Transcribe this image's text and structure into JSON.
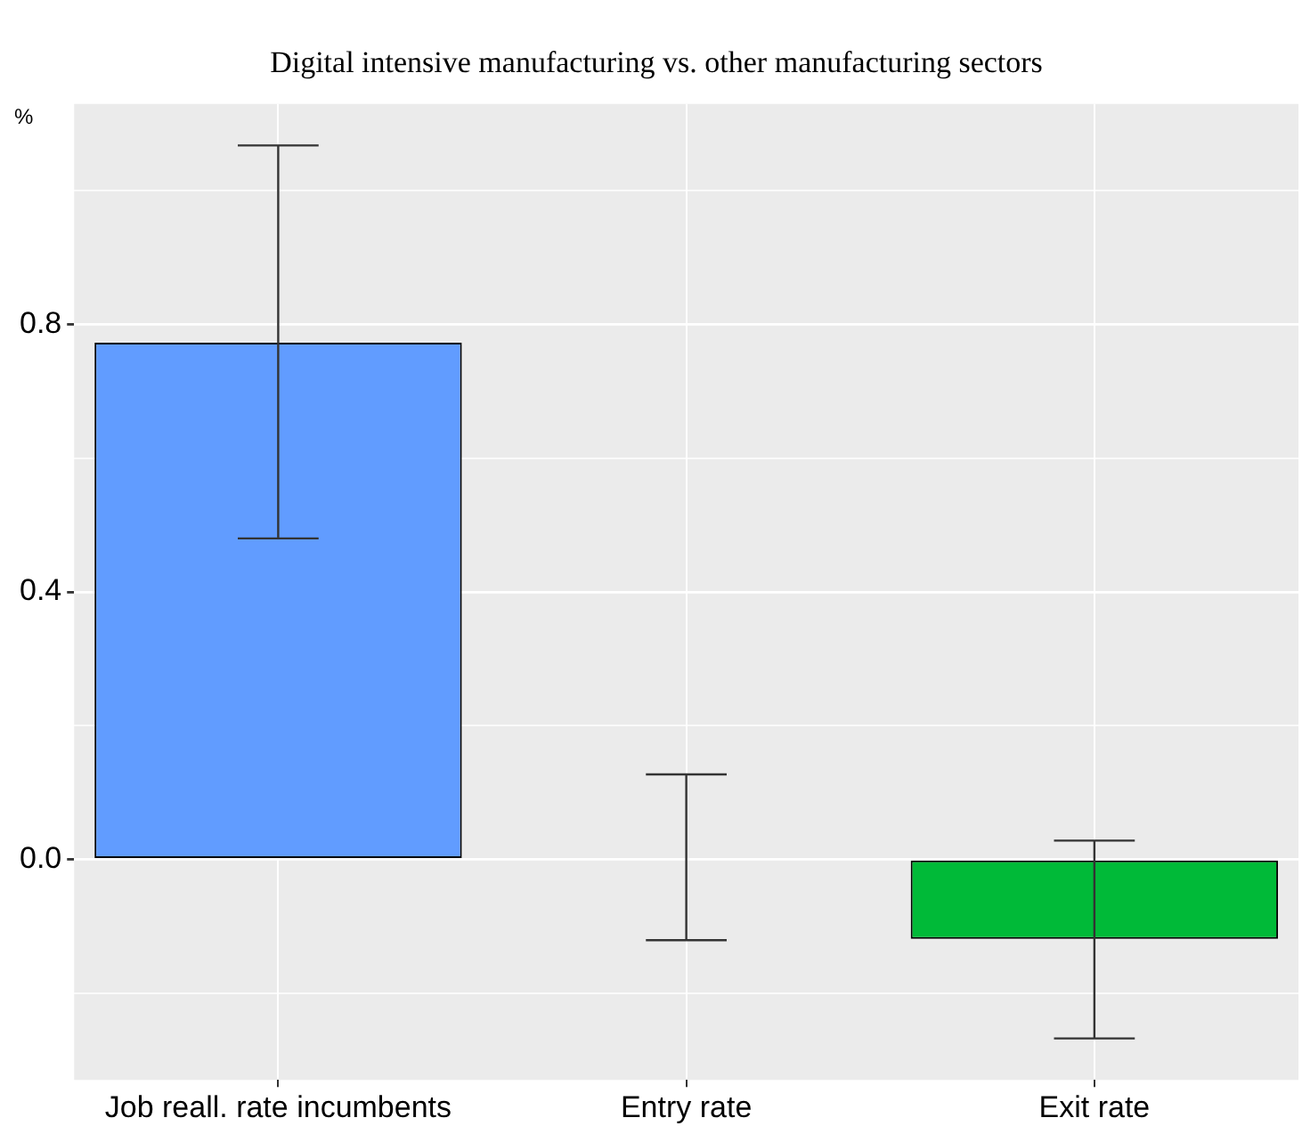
{
  "chart_data": {
    "type": "bar",
    "title": "Digital intensive manufacturing vs. other manufacturing sectors",
    "ylabel": "%",
    "categories": [
      "Job reall. rate incumbents",
      "Entry rate",
      "Exit rate"
    ],
    "values": [
      0.773,
      0.002,
      -0.119
    ],
    "colors": [
      "#619cff",
      "#000000",
      "#00ba38"
    ],
    "errors": [
      [
        0.48,
        1.068
      ],
      [
        -0.121,
        0.127
      ],
      [
        -0.268,
        0.028
      ]
    ],
    "ylim": [
      -0.33,
      1.13
    ],
    "yticks": [
      {
        "value": -0.2,
        "label": null
      },
      {
        "value": 0.0,
        "label": "0.0"
      },
      {
        "value": 0.2,
        "label": null
      },
      {
        "value": 0.4,
        "label": "0.4"
      },
      {
        "value": 0.6,
        "label": null
      },
      {
        "value": 0.8,
        "label": "0.8"
      },
      {
        "value": 1.0,
        "label": null
      }
    ],
    "grid": true,
    "legend": false
  }
}
